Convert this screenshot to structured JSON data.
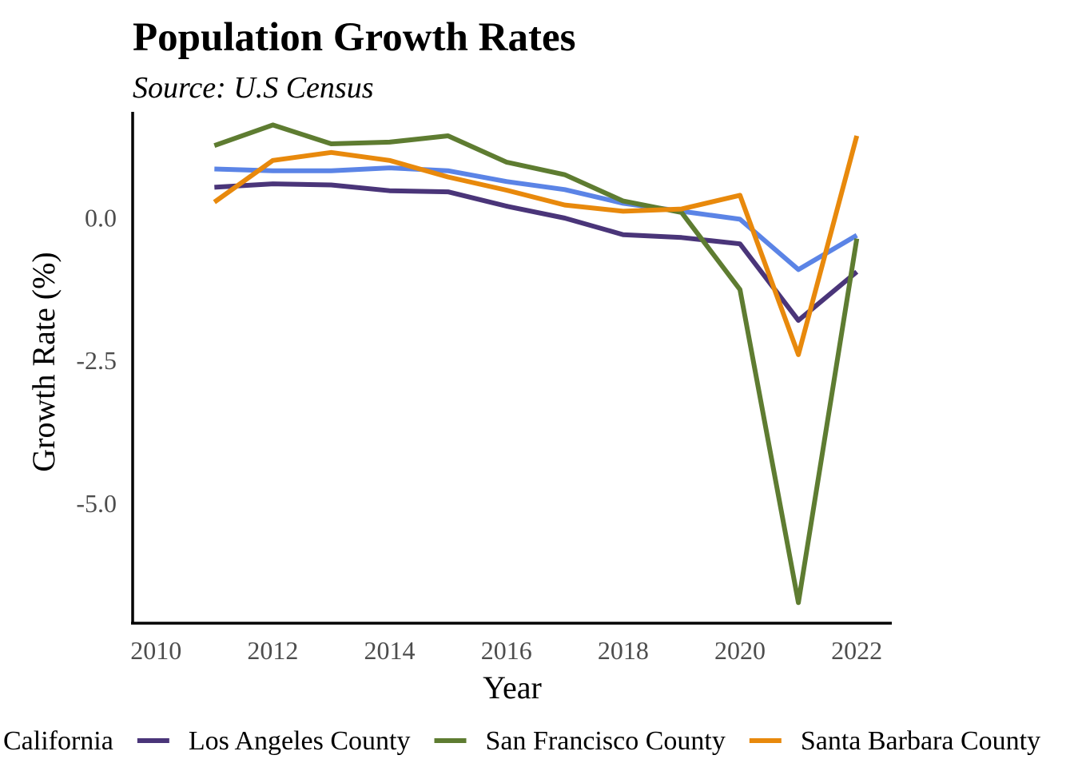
{
  "chart_data": {
    "type": "line",
    "title": "Population Growth Rates",
    "subtitle": "Source: U.S Census",
    "xlabel": "Year",
    "ylabel": "Growth Rate (%)",
    "xlim": [
      2009.6,
      2022.6
    ],
    "ylim": [
      -7.1,
      1.85
    ],
    "xticks": [
      2010,
      2012,
      2014,
      2016,
      2018,
      2020,
      2022
    ],
    "xtick_labels": [
      "2010",
      "2012",
      "2014",
      "2016",
      "2018",
      "2020",
      "2022"
    ],
    "yticks": [
      0,
      -2.5,
      -5
    ],
    "ytick_labels": [
      "0.0",
      "-2.5",
      "-5.0"
    ],
    "grid": false,
    "legend_position": "bottom",
    "x": [
      2011,
      2012,
      2013,
      2014,
      2015,
      2016,
      2017,
      2018,
      2019,
      2020,
      2021,
      2022
    ],
    "series": [
      {
        "name": "California",
        "color": "#5b84e6",
        "values": [
          0.85,
          0.82,
          0.82,
          0.87,
          0.82,
          0.63,
          0.49,
          0.25,
          0.11,
          -0.03,
          -0.91,
          -0.31
        ]
      },
      {
        "name": "Los Angeles County",
        "color": "#4a3579",
        "values": [
          0.53,
          0.59,
          0.57,
          0.47,
          0.45,
          0.2,
          -0.01,
          -0.3,
          -0.35,
          -0.46,
          -1.8,
          -0.95
        ]
      },
      {
        "name": "San Francisco County",
        "color": "#5e7c31",
        "values": [
          1.26,
          1.62,
          1.29,
          1.32,
          1.43,
          0.97,
          0.75,
          0.29,
          0.09,
          -1.26,
          -6.74,
          -0.37
        ]
      },
      {
        "name": "Santa Barbara County",
        "color": "#e8890c",
        "values": [
          0.27,
          1.0,
          1.14,
          1.0,
          0.71,
          0.48,
          0.22,
          0.11,
          0.15,
          0.39,
          -2.4,
          1.43
        ]
      }
    ]
  }
}
